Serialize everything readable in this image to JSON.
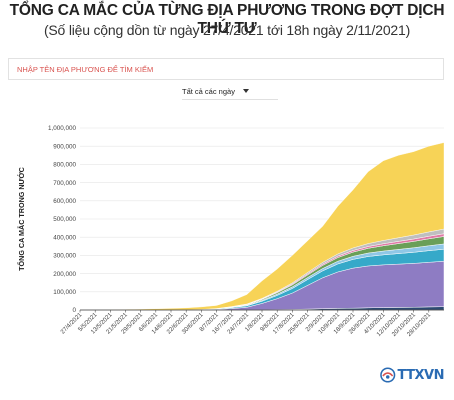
{
  "header": {
    "title": "TỔNG CA MẮC CỦA TỪNG ĐỊA PHƯƠNG TRONG ĐỢT DỊCH THỨ TƯ",
    "subtitle": "(Số liệu cộng dồn từ ngày 27/4/2021 tới 18h ngày 2/11/2021)"
  },
  "search": {
    "placeholder": "NHẬP TÊN ĐỊA PHƯƠNG ĐỂ TÌM KIẾM",
    "value": ""
  },
  "filter": {
    "selected": "Tất cả các ngày"
  },
  "logo": {
    "text": "TTXVN"
  },
  "colors": {
    "yellow": "#f7d357",
    "purple": "#8e7cc3",
    "teal": "#36a9c9",
    "navy": "#2c4a72",
    "green": "#6a9f58",
    "pink": "#e07aa6",
    "lightblue": "#8fc7e6",
    "gray": "#bfbfbf",
    "grid": "#e6e6e6",
    "axis": "#333333"
  },
  "chart_data": {
    "type": "area",
    "stacked": true,
    "title": "",
    "xlabel": "",
    "ylabel": "TỔNG CA MẮC TRONG NƯỚC",
    "ylim": [
      0,
      1000000
    ],
    "y_ticks": [
      "0",
      "100,000",
      "200,000",
      "300,000",
      "400,000",
      "500,000",
      "600,000",
      "700,000",
      "800,000",
      "900,000",
      "1,000,000"
    ],
    "grid": true,
    "legend": "none",
    "x_ticks": [
      "27/4/2021",
      "5/5/2021",
      "13/5/2021",
      "21/5/2021",
      "29/5/2021",
      "6/6/2021",
      "14/6/2021",
      "22/6/2021",
      "30/6/2021",
      "8/7/2021",
      "16/7/2021",
      "24/7/2021",
      "1/8/2021",
      "9/8/2021",
      "17/8/2021",
      "25/8/2021",
      "2/9/2021",
      "10/9/2021",
      "18/9/2021",
      "26/9/2021",
      "4/10/2021",
      "12/10/2021",
      "20/10/2021",
      "28/10/2021"
    ],
    "x": [
      "27/4/2021",
      "5/5/2021",
      "13/5/2021",
      "21/5/2021",
      "29/5/2021",
      "6/6/2021",
      "14/6/2021",
      "22/6/2021",
      "30/6/2021",
      "8/7/2021",
      "16/7/2021",
      "24/7/2021",
      "1/8/2021",
      "9/8/2021",
      "17/8/2021",
      "25/8/2021",
      "2/9/2021",
      "10/9/2021",
      "18/9/2021",
      "26/9/2021",
      "4/10/2021",
      "12/10/2021",
      "20/10/2021",
      "28/10/2021",
      "2/11/2021"
    ],
    "total": [
      0,
      1000,
      2000,
      3000,
      5000,
      7000,
      9000,
      12000,
      17000,
      25000,
      50000,
      85000,
      160000,
      225000,
      300000,
      380000,
      460000,
      570000,
      660000,
      760000,
      820000,
      850000,
      870000,
      900000,
      920000
    ],
    "series": [
      {
        "color": "#2c4a72",
        "values": [
          0,
          0,
          0,
          0,
          0,
          0,
          0,
          0,
          0,
          0,
          0,
          0,
          1000,
          2000,
          3000,
          5000,
          7000,
          9000,
          10000,
          12000,
          13000,
          14000,
          15000,
          17000,
          18000
        ]
      },
      {
        "color": "#8e7cc3",
        "values": [
          0,
          0,
          0,
          0,
          0,
          0,
          0,
          0,
          1000,
          3000,
          8000,
          15000,
          35000,
          60000,
          90000,
          130000,
          170000,
          200000,
          220000,
          230000,
          235000,
          238000,
          241000,
          245000,
          250000
        ]
      },
      {
        "color": "#36a9c9",
        "values": [
          0,
          0,
          0,
          0,
          0,
          0,
          0,
          1000,
          2000,
          3000,
          5000,
          8000,
          12000,
          18000,
          25000,
          32000,
          38000,
          44000,
          48000,
          52000,
          55000,
          58000,
          61000,
          64000,
          66000
        ]
      },
      {
        "color": "#8fc7e6",
        "values": [
          0,
          0,
          0,
          0,
          0,
          0,
          0,
          0,
          0,
          1000,
          2000,
          3000,
          5000,
          7000,
          9000,
          11000,
          13000,
          15000,
          17000,
          19000,
          21000,
          23000,
          25000,
          27000,
          29000
        ]
      },
      {
        "color": "#6a9f58",
        "values": [
          0,
          0,
          0,
          0,
          0,
          0,
          0,
          0,
          0,
          1000,
          2000,
          3000,
          5000,
          8000,
          11000,
          14000,
          17000,
          20000,
          23000,
          26000,
          29000,
          32000,
          35000,
          38000,
          41000
        ]
      },
      {
        "color": "#e07aa6",
        "values": [
          0,
          0,
          0,
          0,
          0,
          0,
          0,
          0,
          0,
          0,
          1000,
          2000,
          3000,
          4000,
          5000,
          6000,
          7000,
          8000,
          9000,
          10000,
          11000,
          12000,
          13000,
          14000,
          15000
        ]
      },
      {
        "color": "#bfbfbf",
        "values": [
          0,
          0,
          0,
          0,
          0,
          0,
          0,
          0,
          0,
          0,
          1000,
          2000,
          3000,
          4000,
          6000,
          8000,
          10000,
          12000,
          14000,
          16000,
          18000,
          20000,
          22000,
          24000,
          26000
        ]
      }
    ]
  }
}
